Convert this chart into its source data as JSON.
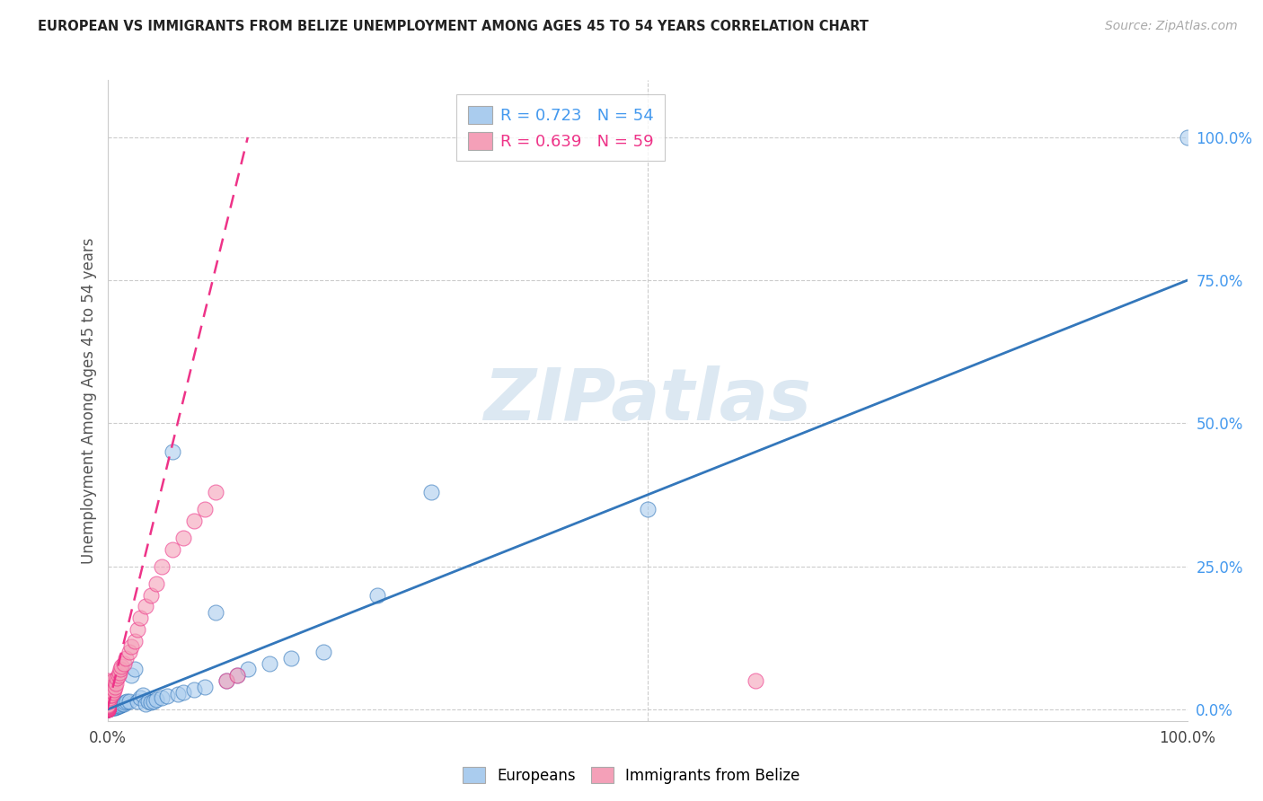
{
  "title": "EUROPEAN VS IMMIGRANTS FROM BELIZE UNEMPLOYMENT AMONG AGES 45 TO 54 YEARS CORRELATION CHART",
  "source": "Source: ZipAtlas.com",
  "ylabel": "Unemployment Among Ages 45 to 54 years",
  "xlim": [
    0,
    1.0
  ],
  "ylim": [
    -0.02,
    1.1
  ],
  "xticks": [
    0.0,
    1.0
  ],
  "xticklabels": [
    "0.0%",
    "100.0%"
  ],
  "yticks": [
    0.0,
    0.25,
    0.5,
    0.75,
    1.0
  ],
  "yticklabels": [
    "0.0%",
    "25.0%",
    "50.0%",
    "75.0%",
    "100.0%"
  ],
  "europeans_R": 0.723,
  "europeans_N": 54,
  "belize_R": 0.639,
  "belize_N": 59,
  "european_color": "#aaccee",
  "belize_color": "#f4a0b8",
  "european_line_color": "#3377bb",
  "belize_line_color": "#ee3388",
  "background_color": "#ffffff",
  "watermark": "ZIPatlas",
  "watermark_color": "#dce8f2",
  "grid_color": "#cccccc",
  "tick_color": "#4499ee",
  "europeans_x": [
    0.0,
    0.0,
    0.0,
    0.0,
    0.0,
    0.0,
    0.0,
    0.0,
    0.0,
    0.0,
    0.002,
    0.003,
    0.004,
    0.005,
    0.006,
    0.007,
    0.008,
    0.009,
    0.01,
    0.011,
    0.012,
    0.014,
    0.015,
    0.016,
    0.018,
    0.02,
    0.022,
    0.025,
    0.028,
    0.03,
    0.033,
    0.035,
    0.038,
    0.04,
    0.043,
    0.045,
    0.05,
    0.055,
    0.06,
    0.065,
    0.07,
    0.08,
    0.09,
    0.1,
    0.11,
    0.12,
    0.13,
    0.15,
    0.17,
    0.2,
    0.25,
    0.3,
    0.5,
    1.0
  ],
  "europeans_y": [
    0.0,
    0.0,
    0.0,
    0.0,
    0.001,
    0.001,
    0.001,
    0.001,
    0.001,
    0.002,
    0.002,
    0.002,
    0.003,
    0.003,
    0.004,
    0.004,
    0.005,
    0.005,
    0.006,
    0.007,
    0.008,
    0.009,
    0.01,
    0.012,
    0.014,
    0.015,
    0.06,
    0.07,
    0.015,
    0.02,
    0.025,
    0.01,
    0.014,
    0.012,
    0.014,
    0.017,
    0.02,
    0.023,
    0.45,
    0.027,
    0.03,
    0.035,
    0.04,
    0.17,
    0.05,
    0.06,
    0.07,
    0.08,
    0.09,
    0.1,
    0.2,
    0.38,
    0.35,
    1.0
  ],
  "belize_x": [
    0.0,
    0.0,
    0.0,
    0.0,
    0.0,
    0.0,
    0.0,
    0.0,
    0.0,
    0.0,
    0.0,
    0.0,
    0.0,
    0.0,
    0.0,
    0.0,
    0.0,
    0.0,
    0.0,
    0.0,
    0.001,
    0.001,
    0.001,
    0.001,
    0.002,
    0.002,
    0.003,
    0.003,
    0.004,
    0.004,
    0.005,
    0.005,
    0.006,
    0.007,
    0.008,
    0.009,
    0.01,
    0.011,
    0.012,
    0.013,
    0.015,
    0.017,
    0.02,
    0.022,
    0.025,
    0.028,
    0.03,
    0.035,
    0.04,
    0.045,
    0.05,
    0.06,
    0.07,
    0.08,
    0.09,
    0.1,
    0.11,
    0.12,
    0.6
  ],
  "belize_y": [
    0.0,
    0.0,
    0.0,
    0.0,
    0.0,
    0.001,
    0.001,
    0.001,
    0.002,
    0.002,
    0.003,
    0.003,
    0.004,
    0.004,
    0.005,
    0.005,
    0.006,
    0.006,
    0.007,
    0.008,
    0.015,
    0.025,
    0.035,
    0.05,
    0.02,
    0.03,
    0.025,
    0.035,
    0.025,
    0.04,
    0.03,
    0.05,
    0.035,
    0.04,
    0.045,
    0.055,
    0.06,
    0.065,
    0.07,
    0.075,
    0.08,
    0.09,
    0.1,
    0.11,
    0.12,
    0.14,
    0.16,
    0.18,
    0.2,
    0.22,
    0.25,
    0.28,
    0.3,
    0.33,
    0.35,
    0.38,
    0.05,
    0.06,
    0.05
  ],
  "eu_trend_x": [
    0.0,
    1.0
  ],
  "eu_trend_y": [
    0.0,
    0.75
  ],
  "bz_trend_x": [
    0.0,
    0.13
  ],
  "bz_trend_y": [
    0.0,
    1.0
  ]
}
